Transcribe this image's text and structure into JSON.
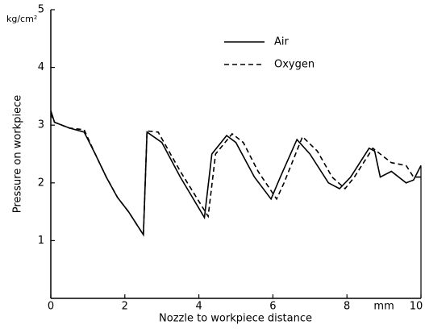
{
  "chart_data": {
    "type": "line",
    "y_unit": "kg/cm²",
    "x_unit": "mm",
    "xlabel": "Nozzle to workpiece distance",
    "ylabel": "Pressure on workpiece",
    "xlim": [
      0,
      10
    ],
    "ylim": [
      0,
      5
    ],
    "xticks": [
      0,
      2,
      4,
      6,
      8,
      10
    ],
    "yticks": [
      1,
      2,
      3,
      4,
      5
    ],
    "legend": "upper center",
    "series": [
      {
        "name": "Air",
        "color": "#000000",
        "dash": "solid",
        "x": [
          0,
          0.1,
          0.5,
          0.9,
          1.2,
          1.5,
          1.8,
          2.1,
          2.5,
          2.6,
          3.0,
          3.5,
          4.15,
          4.35,
          4.75,
          5.0,
          5.5,
          5.95,
          6.2,
          6.65,
          7.0,
          7.5,
          7.8,
          8.1,
          8.6,
          8.75,
          8.9,
          9.2,
          9.6,
          9.8,
          10
        ],
        "values": [
          3.25,
          3.05,
          2.95,
          2.88,
          2.5,
          2.1,
          1.75,
          1.5,
          1.1,
          2.88,
          2.7,
          2.1,
          1.4,
          2.5,
          2.82,
          2.7,
          2.1,
          1.72,
          2.1,
          2.75,
          2.5,
          2.0,
          1.9,
          2.1,
          2.6,
          2.55,
          2.1,
          2.2,
          2.0,
          2.05,
          2.3
        ]
      },
      {
        "name": "Oxygen",
        "color": "#000000",
        "dash": "dashed",
        "x": [
          0,
          0.1,
          0.5,
          0.9,
          1.2,
          1.5,
          1.8,
          2.1,
          2.5,
          2.6,
          2.9,
          3.5,
          4.25,
          4.45,
          4.9,
          5.2,
          5.6,
          6.1,
          6.3,
          6.8,
          7.2,
          7.6,
          7.95,
          8.2,
          8.7,
          8.9,
          9.2,
          9.6,
          9.8,
          10
        ],
        "values": [
          3.2,
          3.05,
          2.95,
          2.92,
          2.5,
          2.1,
          1.75,
          1.5,
          1.1,
          2.9,
          2.88,
          2.2,
          1.42,
          2.5,
          2.85,
          2.7,
          2.2,
          1.72,
          2.0,
          2.8,
          2.55,
          2.1,
          1.9,
          2.1,
          2.6,
          2.5,
          2.35,
          2.3,
          2.1,
          2.1
        ]
      }
    ]
  }
}
